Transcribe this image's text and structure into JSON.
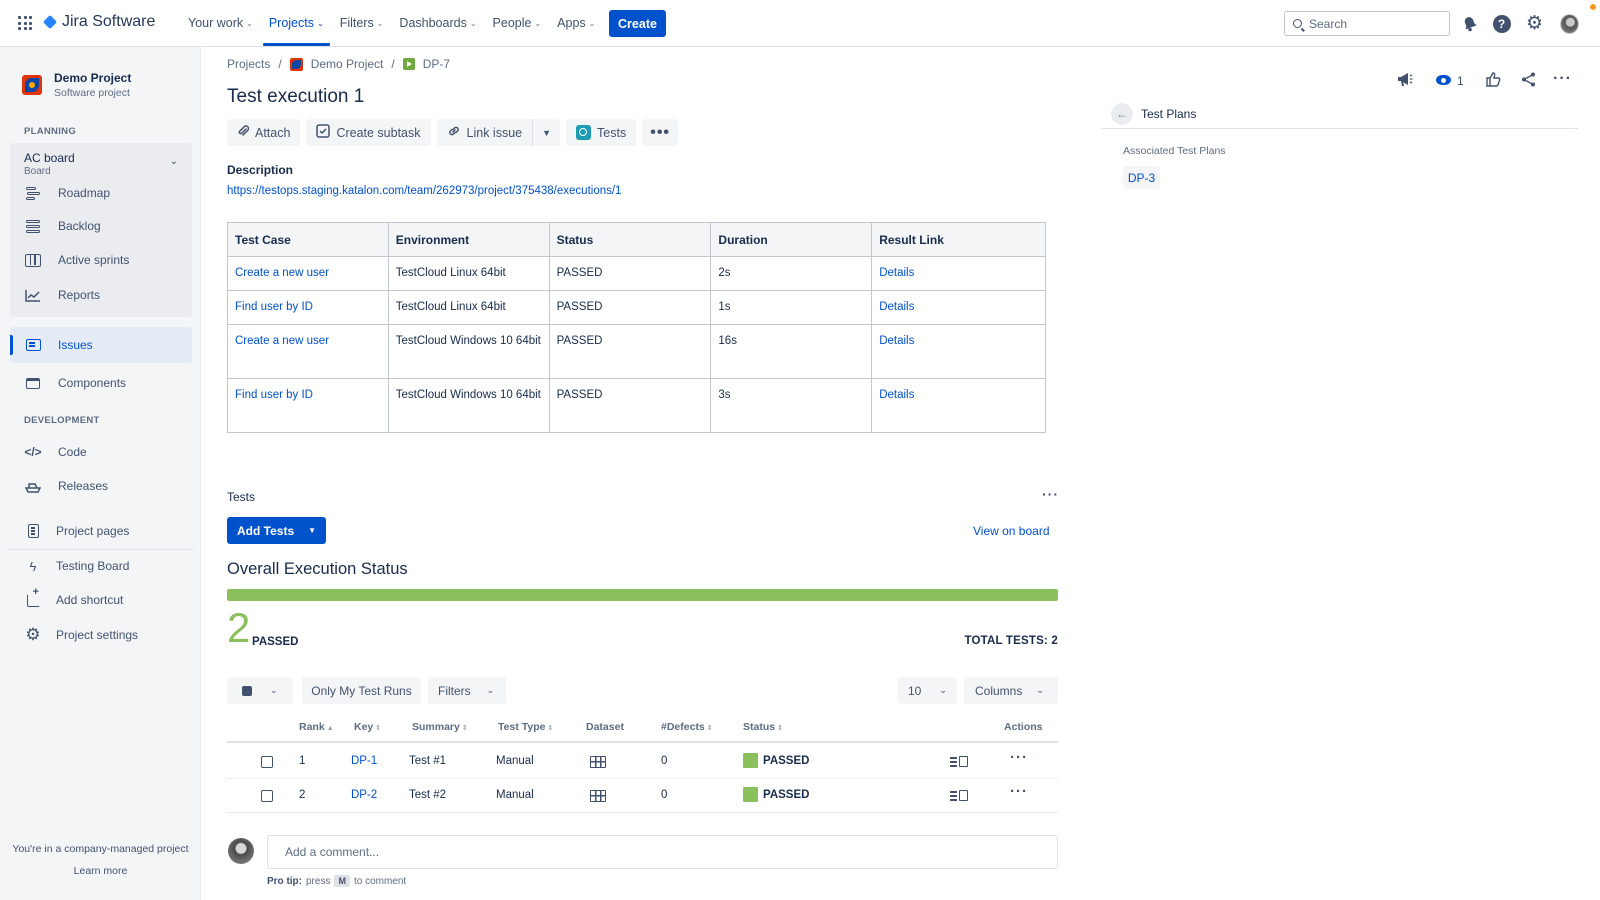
{
  "app": {
    "logo_text": "Jira Software",
    "create_label": "Create",
    "search_placeholder": "Search"
  },
  "nav": {
    "items": [
      {
        "label": "Your work"
      },
      {
        "label": "Projects"
      },
      {
        "label": "Filters"
      },
      {
        "label": "Dashboards"
      },
      {
        "label": "People"
      },
      {
        "label": "Apps"
      }
    ],
    "active": "Projects",
    "help_glyph": "?"
  },
  "sidebar": {
    "project_name": "Demo Project",
    "project_type": "Software project",
    "planning_heading": "PLANNING",
    "board_title": "AC board",
    "board_sub": "Board",
    "planning_items": [
      {
        "label": "Roadmap"
      },
      {
        "label": "Backlog"
      },
      {
        "label": "Active sprints"
      },
      {
        "label": "Reports"
      }
    ],
    "issues_label": "Issues",
    "components_label": "Components",
    "development_heading": "DEVELOPMENT",
    "code_label": "Code",
    "releases_label": "Releases",
    "project_pages_label": "Project pages",
    "testing_board_label": "Testing Board",
    "add_shortcut_label": "Add shortcut",
    "project_settings_label": "Project settings",
    "footer_text": "You're in a company-managed project",
    "learn_more": "Learn more"
  },
  "breadcrumb": {
    "projects": "Projects",
    "project": "Demo Project",
    "issue": "DP-7",
    "sep": "/"
  },
  "issue": {
    "title": "Test execution 1",
    "toolbar": {
      "attach": "Attach",
      "create_subtask": "Create subtask",
      "link_issue": "Link issue",
      "tests": "Tests"
    },
    "description_label": "Description",
    "description_link": "https://testops.staging.katalon.com/team/262973/project/375438/executions/1"
  },
  "exec_table": {
    "headers": [
      "Test Case",
      "Environment",
      "Status",
      "Duration",
      "Result Link"
    ],
    "rows": [
      {
        "test_case": "Create a new user",
        "environment": "TestCloud Linux 64bit",
        "status": "PASSED",
        "duration": "2s",
        "result": "Details"
      },
      {
        "test_case": "Find user by ID",
        "environment": "TestCloud Linux 64bit",
        "status": "PASSED",
        "duration": "1s",
        "result": "Details"
      },
      {
        "test_case": "Create a new user",
        "environment": "TestCloud Windows 10 64bit",
        "status": "PASSED",
        "duration": "16s",
        "result": "Details"
      },
      {
        "test_case": "Find user by ID",
        "environment": "TestCloud Windows 10 64bit",
        "status": "PASSED",
        "duration": "3s",
        "result": "Details"
      }
    ]
  },
  "tests_panel": {
    "label": "Tests",
    "add_tests": "Add Tests",
    "view_on_board": "View on board",
    "overall_title": "Overall Execution Status",
    "progress_passed_fraction": 1.0,
    "passed_count": "2",
    "passed_label": "PASSED",
    "total_tests": "TOTAL TESTS: 2",
    "only_my_runs": "Only My Test Runs",
    "filters": "Filters",
    "page_size": "10",
    "columns": "Columns",
    "headers": {
      "rank": "Rank",
      "key": "Key",
      "summary": "Summary",
      "test_type": "Test Type",
      "dataset": "Dataset",
      "defects": "#Defects",
      "status": "Status",
      "actions": "Actions"
    },
    "rows": [
      {
        "rank": "1",
        "key": "DP-1",
        "summary": "Test #1",
        "test_type": "Manual",
        "defects": "0",
        "status": "PASSED"
      },
      {
        "rank": "2",
        "key": "DP-2",
        "summary": "Test #2",
        "test_type": "Manual",
        "defects": "0",
        "status": "PASSED"
      }
    ]
  },
  "comment": {
    "placeholder": "Add a comment...",
    "protip_bold": "Pro tip:",
    "protip_press": "press",
    "protip_key": "M",
    "protip_rest": "to comment"
  },
  "right_panel": {
    "watch_count": "1",
    "test_plans_title": "Test Plans",
    "associated_label": "Associated Test Plans",
    "associated_plans": [
      "DP-3"
    ]
  },
  "colors": {
    "accent": "#0052cc",
    "passed": "#8bc15c",
    "sidebar_bg": "#f4f5f7"
  }
}
